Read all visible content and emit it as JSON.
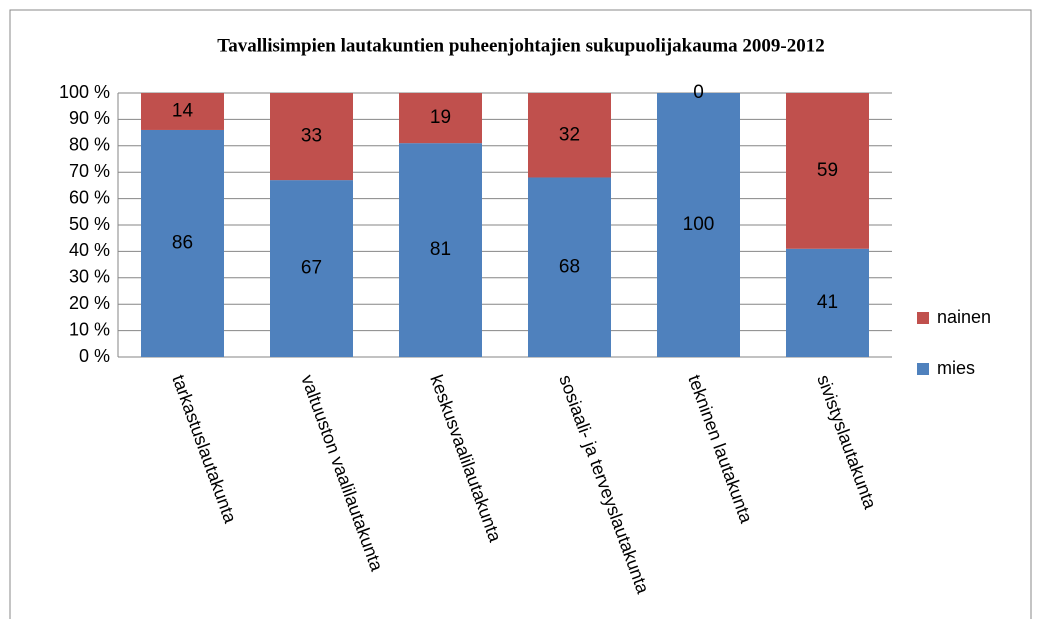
{
  "chart_data": {
    "type": "stacked_bar",
    "title": "Tavallisimpien lautakuntien puheenjohtajien sukupuolijakauma 2009-2012",
    "categories": [
      "tarkastuslautakunta",
      "valtuuston vaalilautakunta",
      "keskusvaalilautakunta",
      "sosiaali- ja terveyslautakunta",
      "tekninen lautakunta",
      "sivistyslautakunta"
    ],
    "series": [
      {
        "name": "mies",
        "color": "#4f81bd",
        "values": [
          86,
          67,
          81,
          68,
          100,
          41
        ]
      },
      {
        "name": "nainen",
        "color": "#c0504d",
        "values": [
          14,
          33,
          19,
          32,
          0,
          59
        ]
      }
    ],
    "ylim": [
      0,
      100
    ],
    "yticks": [
      {
        "value": 0,
        "label": "0 %"
      },
      {
        "value": 10,
        "label": "10 %"
      },
      {
        "value": 20,
        "label": "20 %"
      },
      {
        "value": 30,
        "label": "30 %"
      },
      {
        "value": 40,
        "label": "40 %"
      },
      {
        "value": 50,
        "label": "50 %"
      },
      {
        "value": 60,
        "label": "60 %"
      },
      {
        "value": 70,
        "label": "70 %"
      },
      {
        "value": 80,
        "label": "80 %"
      },
      {
        "value": 90,
        "label": "90 %"
      },
      {
        "value": 100,
        "label": "100 %"
      }
    ],
    "grid": true,
    "legend": "right"
  }
}
